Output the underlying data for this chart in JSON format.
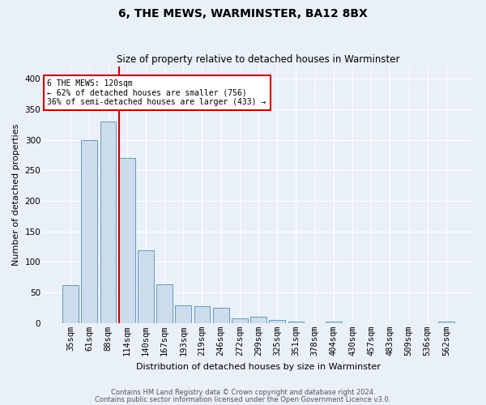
{
  "title": "6, THE MEWS, WARMINSTER, BA12 8BX",
  "subtitle": "Size of property relative to detached houses in Warminster",
  "xlabel": "Distribution of detached houses by size in Warminster",
  "ylabel": "Number of detached properties",
  "categories": [
    "35sqm",
    "61sqm",
    "88sqm",
    "114sqm",
    "140sqm",
    "167sqm",
    "193sqm",
    "219sqm",
    "246sqm",
    "272sqm",
    "299sqm",
    "325sqm",
    "351sqm",
    "378sqm",
    "404sqm",
    "430sqm",
    "457sqm",
    "483sqm",
    "509sqm",
    "536sqm",
    "562sqm"
  ],
  "values": [
    62,
    300,
    330,
    270,
    119,
    63,
    29,
    28,
    25,
    8,
    10,
    5,
    3,
    0,
    3,
    0,
    0,
    0,
    0,
    0,
    3
  ],
  "bar_color": "#ccdcec",
  "bar_edge_color": "#6699bb",
  "red_line_index": 3,
  "red_line_color": "#cc0000",
  "annotation_text": "6 THE MEWS: 120sqm\n← 62% of detached houses are smaller (756)\n36% of semi-detached houses are larger (433) →",
  "annotation_box_color": "white",
  "annotation_box_edge": "#cc0000",
  "footnote1": "Contains HM Land Registry data © Crown copyright and database right 2024.",
  "footnote2": "Contains public sector information licensed under the Open Government Licence v3.0.",
  "background_color": "#eaf0f8",
  "ylim": [
    0,
    420
  ],
  "yticks": [
    0,
    50,
    100,
    150,
    200,
    250,
    300,
    350,
    400
  ],
  "title_fontsize": 10,
  "subtitle_fontsize": 8.5,
  "xlabel_fontsize": 8,
  "ylabel_fontsize": 8,
  "tick_fontsize": 7.5,
  "annot_fontsize": 7,
  "footnote_fontsize": 6
}
